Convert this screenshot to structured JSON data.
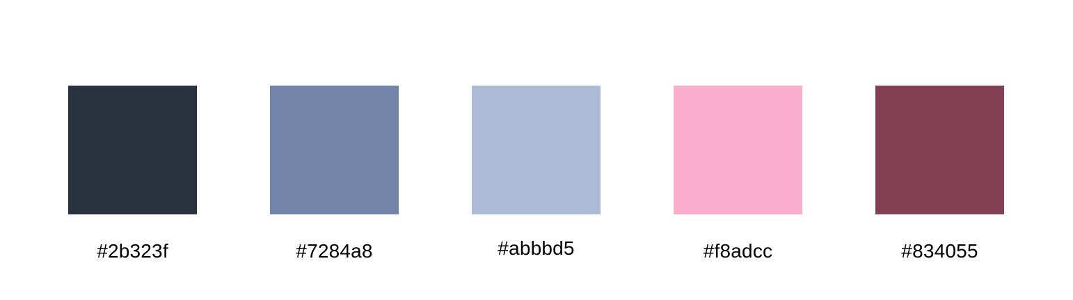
{
  "palette": {
    "swatches": [
      {
        "label": "#2b323f",
        "color": "#2b323f"
      },
      {
        "label": "#7284a8",
        "color": "#7284a8"
      },
      {
        "label": "#abbbd5",
        "color": "#abbbd5"
      },
      {
        "label": "#f8adcc",
        "color": "#f8adcc"
      },
      {
        "label": "#834055",
        "color": "#834055"
      }
    ]
  }
}
